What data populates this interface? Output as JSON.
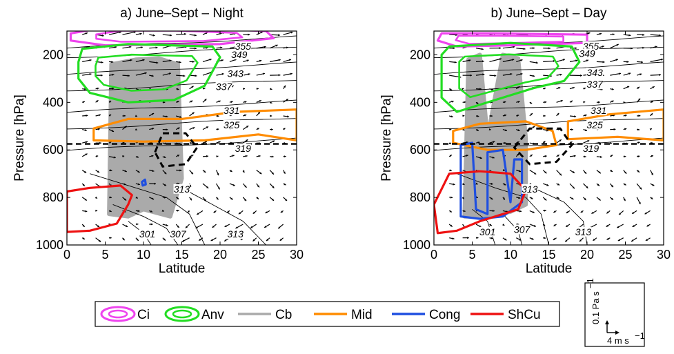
{
  "chart_data": [
    {
      "type": "contour",
      "title": "a) June–Sept – Night",
      "xlabel": "Latitude",
      "ylabel": "Pressure [hPa]",
      "xlim": [
        0,
        30
      ],
      "ylim": [
        1000,
        100
      ],
      "x_ticks": [
        "0",
        "5",
        "10",
        "15",
        "20",
        "25",
        "30"
      ],
      "y_ticks": [
        "200",
        "400",
        "600",
        "800",
        "1000"
      ],
      "freezing_level_hpa": 575,
      "theta_labels": [
        {
          "text": "355",
          "x": 23.0,
          "y": 170
        },
        {
          "text": "349",
          "x": 22.5,
          "y": 205
        },
        {
          "text": "343",
          "x": 22.0,
          "y": 285
        },
        {
          "text": "337",
          "x": 20.5,
          "y": 340
        },
        {
          "text": "331",
          "x": 21.5,
          "y": 440
        },
        {
          "text": "325",
          "x": 21.5,
          "y": 500
        },
        {
          "text": "319",
          "x": 23.0,
          "y": 600
        },
        {
          "text": "313",
          "x": 15.0,
          "y": 770
        },
        {
          "text": "307",
          "x": 14.5,
          "y": 960
        },
        {
          "text": "301",
          "x": 10.5,
          "y": 960
        },
        {
          "text": "313",
          "x": 22.0,
          "y": 960
        }
      ],
      "cloud_regions": [
        {
          "type": "Ci",
          "points": [
            [
              0.5,
              110
            ],
            [
              5,
              85
            ],
            [
              15,
              85
            ],
            [
              26,
              100
            ],
            [
              27,
              130
            ],
            [
              20,
              155
            ],
            [
              5,
              160
            ],
            [
              0.5,
              140
            ]
          ]
        },
        {
          "type": "Anv",
          "points": [
            [
              1.5,
              230
            ],
            [
              2,
              175
            ],
            [
              8,
              155
            ],
            [
              19,
              165
            ],
            [
              20,
              210
            ],
            [
              18,
              330
            ],
            [
              14,
              390
            ],
            [
              8,
              400
            ],
            [
              3,
              360
            ],
            [
              1.5,
              300
            ]
          ]
        },
        {
          "type": "Cb",
          "points": [
            [
              5.5,
              870
            ],
            [
              5.8,
              240
            ],
            [
              9,
              220
            ],
            [
              12,
              215
            ],
            [
              14.5,
              240
            ],
            [
              15,
              720
            ],
            [
              13.5,
              880
            ],
            [
              10,
              850
            ],
            [
              8,
              880
            ]
          ]
        },
        {
          "type": "Mid",
          "points": [
            [
              3.5,
              510
            ],
            [
              8,
              470
            ],
            [
              15,
              470
            ],
            [
              22,
              440
            ],
            [
              30,
              430
            ],
            [
              30,
              560
            ],
            [
              25,
              535
            ],
            [
              18,
              560
            ],
            [
              10,
              565
            ],
            [
              3.5,
              560
            ]
          ]
        },
        {
          "type": "Cong",
          "points": [
            [
              9.8,
              735
            ],
            [
              10.2,
              725
            ],
            [
              10.3,
              745
            ],
            [
              9.9,
              750
            ]
          ]
        },
        {
          "type": "ShCu",
          "points": [
            [
              0,
              775
            ],
            [
              3,
              760
            ],
            [
              7,
              750
            ],
            [
              8.5,
              790
            ],
            [
              8,
              830
            ],
            [
              6.5,
              910
            ],
            [
              3,
              940
            ],
            [
              0,
              945
            ]
          ]
        }
      ],
      "dashed_contours": [
        {
          "points": [
            [
              11.5,
              610
            ],
            [
              12.5,
              530
            ],
            [
              15.5,
              530
            ],
            [
              17,
              590
            ],
            [
              15.5,
              660
            ],
            [
              12.5,
              670
            ]
          ]
        }
      ]
    },
    {
      "type": "contour",
      "title": "b) June–Sept – Day",
      "xlabel": "Latitude",
      "ylabel": "Pressure [hPa]",
      "xlim": [
        0,
        30
      ],
      "ylim": [
        1000,
        100
      ],
      "x_ticks": [
        "0",
        "5",
        "10",
        "15",
        "20",
        "25",
        "30"
      ],
      "y_ticks": [
        "200",
        "400",
        "600",
        "800",
        "1000"
      ],
      "freezing_level_hpa": 575,
      "theta_labels": [
        {
          "text": "355",
          "x": 20.5,
          "y": 170
        },
        {
          "text": "349",
          "x": 20.0,
          "y": 200
        },
        {
          "text": "343",
          "x": 21.0,
          "y": 280
        },
        {
          "text": "337",
          "x": 21.0,
          "y": 330
        },
        {
          "text": "331",
          "x": 21.5,
          "y": 440
        },
        {
          "text": "325",
          "x": 21.0,
          "y": 500
        },
        {
          "text": "319",
          "x": 20.5,
          "y": 600
        },
        {
          "text": "313",
          "x": 12.5,
          "y": 770
        },
        {
          "text": "301",
          "x": 7.0,
          "y": 950
        },
        {
          "text": "307",
          "x": 11.5,
          "y": 940
        },
        {
          "text": "313",
          "x": 19.5,
          "y": 950
        }
      ],
      "cloud_regions": [
        {
          "type": "Ci",
          "points": [
            [
              0.5,
              140
            ],
            [
              1,
              110
            ],
            [
              8,
              110
            ],
            [
              20,
              115
            ],
            [
              20,
              150
            ],
            [
              10,
              160
            ],
            [
              3,
              165
            ]
          ]
        },
        {
          "type": "Anv",
          "points": [
            [
              1,
              200
            ],
            [
              2,
              165
            ],
            [
              10,
              150
            ],
            [
              18,
              165
            ],
            [
              19,
              230
            ],
            [
              17,
              310
            ],
            [
              13,
              340
            ],
            [
              8,
              390
            ],
            [
              3,
              440
            ],
            [
              1,
              380
            ]
          ]
        },
        {
          "type": "Cb",
          "points": [
            [
              4,
              880
            ],
            [
              4.5,
              220
            ],
            [
              6,
              200
            ],
            [
              7,
              550
            ],
            [
              9,
              200
            ],
            [
              11,
              215
            ],
            [
              12,
              550
            ],
            [
              12,
              830
            ],
            [
              10,
              860
            ],
            [
              7,
              880
            ]
          ]
        },
        {
          "type": "Mid",
          "points": [
            [
              2.5,
              520
            ],
            [
              6,
              490
            ],
            [
              12,
              480
            ],
            [
              15.5,
              520
            ],
            [
              16,
              580
            ],
            [
              12,
              600
            ],
            [
              7,
              600
            ],
            [
              2.5,
              570
            ]
          ]
        },
        {
          "type": "Mid",
          "points": [
            [
              17.5,
              480
            ],
            [
              23,
              450
            ],
            [
              30,
              430
            ],
            [
              30,
              560
            ],
            [
              24,
              545
            ],
            [
              17.5,
              555
            ]
          ]
        },
        {
          "type": "Cong",
          "points": [
            [
              3.5,
              880
            ],
            [
              3.5,
              580
            ],
            [
              5,
              570
            ],
            [
              5.5,
              850
            ],
            [
              7,
              870
            ],
            [
              7,
              610
            ],
            [
              9,
              600
            ],
            [
              10,
              820
            ],
            [
              10.5,
              640
            ],
            [
              11.5,
              640
            ],
            [
              11.5,
              820
            ],
            [
              9,
              880
            ],
            [
              6,
              890
            ]
          ]
        },
        {
          "type": "ShCu",
          "points": [
            [
              0,
              830
            ],
            [
              2,
              700
            ],
            [
              6,
              690
            ],
            [
              10,
              700
            ],
            [
              12,
              770
            ],
            [
              11,
              850
            ],
            [
              6,
              900
            ],
            [
              3,
              940
            ],
            [
              0.5,
              950
            ]
          ]
        }
      ],
      "dashed_contours": [
        {
          "points": [
            [
              10.5,
              590
            ],
            [
              12.5,
              510
            ],
            [
              16.5,
              510
            ],
            [
              18,
              580
            ],
            [
              16,
              650
            ],
            [
              12.5,
              660
            ]
          ]
        }
      ]
    }
  ],
  "legend": [
    {
      "name": "Ci",
      "color": "#ee44ee",
      "symbol": "ring"
    },
    {
      "name": "Anv",
      "color": "#22dd22",
      "symbol": "ring"
    },
    {
      "name": "Cb",
      "color": "#aaaaaa",
      "symbol": "line"
    },
    {
      "name": "Mid",
      "color": "#ff8c00",
      "symbol": "line"
    },
    {
      "name": "Cong",
      "color": "#1f4fe0",
      "symbol": "line"
    },
    {
      "name": "ShCu",
      "color": "#ee1111",
      "symbol": "line"
    }
  ],
  "scale_key": {
    "vertical_label": "0.1 Pa s",
    "vertical_exp": "−1",
    "horizontal_label": "4 m s",
    "horizontal_exp": "−1"
  },
  "colors": {
    "ci": "#ee44ee",
    "anv": "#22dd22",
    "cb": "#aaaaaa",
    "mid": "#ff8c00",
    "cong": "#1f4fe0",
    "shcu": "#ee1111"
  }
}
